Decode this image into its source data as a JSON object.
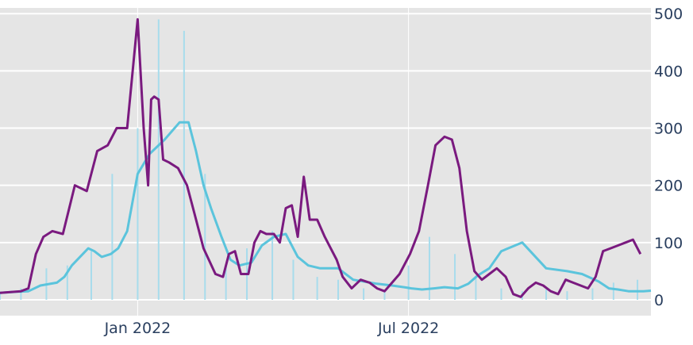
{
  "chart_data": {
    "type": "bar",
    "title": "",
    "xlabel": "",
    "ylabel": "",
    "ylim": [
      0,
      510
    ],
    "y_ticks": [
      "0",
      "100",
      "200",
      "300",
      "400",
      "500"
    ],
    "y_axis_side": "right",
    "grid": true,
    "x_ticks": [
      {
        "label": "Jan 2022",
        "date": "2022-01-01"
      },
      {
        "label": "Jul 2022",
        "date": "2022-07-01"
      }
    ],
    "x_range": [
      "2021-10-01",
      "2022-12-10"
    ],
    "colors": {
      "background": "#e5e5e5",
      "grid": "#ffffff",
      "bars": "#a8dcec",
      "avg_line": "#5bc4dc",
      "purple_line": "#7a1a7f"
    },
    "bar_series": {
      "style": "thin daily bars",
      "x": [
        "2021-10-01",
        "2021-10-15",
        "2021-11-01",
        "2021-11-15",
        "2021-12-01",
        "2021-12-15",
        "2022-01-01",
        "2022-01-15",
        "2022-02-01",
        "2022-02-15",
        "2022-03-01",
        "2022-03-15",
        "2022-04-01",
        "2022-04-15",
        "2022-05-01",
        "2022-05-15",
        "2022-06-01",
        "2022-06-15",
        "2022-07-01",
        "2022-07-15",
        "2022-08-01",
        "2022-08-15",
        "2022-09-01",
        "2022-09-15",
        "2022-10-01",
        "2022-10-15",
        "2022-11-01",
        "2022-11-15",
        "2022-12-01"
      ],
      "values": [
        12,
        20,
        55,
        60,
        85,
        220,
        300,
        490,
        470,
        220,
        60,
        90,
        120,
        70,
        40,
        35,
        20,
        18,
        60,
        110,
        80,
        40,
        20,
        15,
        18,
        15,
        20,
        30,
        35
      ]
    },
    "series": [
      {
        "color": "avg_line",
        "x": [
          "2021-10-01",
          "2021-10-12",
          "2021-10-20",
          "2021-10-28",
          "2021-11-08",
          "2021-11-13",
          "2021-11-18",
          "2021-11-29",
          "2021-12-03",
          "2021-12-08",
          "2021-12-14",
          "2021-12-19",
          "2021-12-25",
          "2022-01-01",
          "2022-01-09",
          "2022-01-19",
          "2022-01-29",
          "2022-02-04",
          "2022-02-09",
          "2022-02-14",
          "2022-02-19",
          "2022-02-26",
          "2022-03-04",
          "2022-03-10",
          "2022-03-18",
          "2022-03-25",
          "2022-04-02",
          "2022-04-10",
          "2022-04-18",
          "2022-04-25",
          "2022-05-03",
          "2022-05-15",
          "2022-05-25",
          "2022-06-10",
          "2022-06-20",
          "2022-06-28",
          "2022-07-03",
          "2022-07-10",
          "2022-07-18",
          "2022-07-25",
          "2022-08-03",
          "2022-08-10",
          "2022-08-16",
          "2022-08-24",
          "2022-09-01",
          "2022-09-15",
          "2022-10-01",
          "2022-10-15",
          "2022-10-25",
          "2022-11-05",
          "2022-11-12",
          "2022-11-18",
          "2022-11-25",
          "2022-12-05",
          "2022-12-10"
        ],
        "y": [
          12,
          14,
          15,
          25,
          30,
          40,
          60,
          90,
          85,
          75,
          80,
          90,
          120,
          220,
          255,
          280,
          310,
          310,
          260,
          200,
          160,
          110,
          70,
          60,
          65,
          95,
          110,
          115,
          75,
          60,
          55,
          55,
          35,
          28,
          25,
          22,
          20,
          18,
          20,
          22,
          20,
          28,
          42,
          55,
          85,
          100,
          55,
          50,
          45,
          32,
          20,
          18,
          15,
          15,
          16
        ]
      },
      {
        "color": "purple_line",
        "x": [
          "2021-10-01",
          "2021-10-15",
          "2021-10-20",
          "2021-10-25",
          "2021-10-30",
          "2021-11-05",
          "2021-11-12",
          "2021-11-20",
          "2021-11-28",
          "2021-12-05",
          "2021-12-12",
          "2021-12-18",
          "2021-12-25",
          "2022-01-01",
          "2022-01-05",
          "2022-01-08",
          "2022-01-10",
          "2022-01-12",
          "2022-01-15",
          "2022-01-18",
          "2022-01-22",
          "2022-01-28",
          "2022-02-03",
          "2022-02-08",
          "2022-02-14",
          "2022-02-22",
          "2022-02-27",
          "2022-03-03",
          "2022-03-07",
          "2022-03-11",
          "2022-03-16",
          "2022-03-20",
          "2022-03-24",
          "2022-03-28",
          "2022-04-02",
          "2022-04-06",
          "2022-04-10",
          "2022-04-14",
          "2022-04-18",
          "2022-04-22",
          "2022-04-26",
          "2022-05-01",
          "2022-05-06",
          "2022-05-10",
          "2022-05-14",
          "2022-05-18",
          "2022-05-24",
          "2022-05-30",
          "2022-06-05",
          "2022-06-10",
          "2022-06-15",
          "2022-06-20",
          "2022-06-25",
          "2022-07-02",
          "2022-07-08",
          "2022-07-14",
          "2022-07-19",
          "2022-07-25",
          "2022-07-30",
          "2022-08-04",
          "2022-08-09",
          "2022-08-14",
          "2022-08-19",
          "2022-08-24",
          "2022-08-29",
          "2022-09-04",
          "2022-09-09",
          "2022-09-14",
          "2022-09-19",
          "2022-09-24",
          "2022-09-29",
          "2022-10-04",
          "2022-10-09",
          "2022-10-14",
          "2022-10-19",
          "2022-10-24",
          "2022-10-29",
          "2022-11-03",
          "2022-11-08",
          "2022-11-13",
          "2022-11-18",
          "2022-11-23",
          "2022-11-28",
          "2022-12-03"
        ],
        "y": [
          12,
          15,
          20,
          80,
          110,
          120,
          115,
          200,
          190,
          260,
          270,
          300,
          300,
          490,
          300,
          200,
          350,
          355,
          350,
          245,
          240,
          230,
          200,
          150,
          90,
          45,
          40,
          80,
          85,
          45,
          45,
          100,
          120,
          115,
          115,
          100,
          160,
          165,
          110,
          215,
          140,
          140,
          110,
          90,
          70,
          40,
          20,
          35,
          30,
          20,
          15,
          30,
          45,
          80,
          120,
          200,
          270,
          285,
          280,
          230,
          120,
          50,
          35,
          45,
          55,
          40,
          10,
          5,
          20,
          30,
          25,
          15,
          10,
          35,
          30,
          25,
          20,
          40,
          85,
          90,
          95,
          100,
          105,
          80
        ]
      }
    ]
  }
}
